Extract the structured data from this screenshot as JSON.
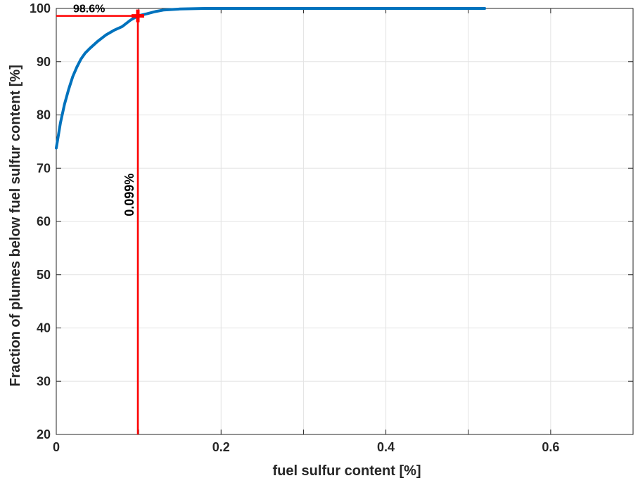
{
  "chart_data": {
    "type": "line",
    "xlabel": "fuel sulfur content [%]",
    "ylabel": "Fraction of plumes below fuel sulfur content [%]",
    "xlim": [
      0,
      0.7
    ],
    "ylim": [
      20,
      100
    ],
    "xticks": [
      "0",
      "0.2",
      "0.4",
      "0.6"
    ],
    "yticks": [
      "20",
      "30",
      "40",
      "50",
      "60",
      "70",
      "80",
      "90",
      "100"
    ],
    "grid": true,
    "series": [
      {
        "color": "#0072BD",
        "x": [
          0,
          0.005,
          0.01,
          0.015,
          0.02,
          0.025,
          0.03,
          0.035,
          0.04,
          0.05,
          0.06,
          0.07,
          0.08,
          0.09,
          0.099,
          0.11,
          0.12,
          0.13,
          0.15,
          0.18,
          0.25,
          0.35,
          0.45,
          0.52
        ],
        "y": [
          73.8,
          78.5,
          82.0,
          84.8,
          87.2,
          89.0,
          90.5,
          91.6,
          92.4,
          93.8,
          95.0,
          95.9,
          96.6,
          97.8,
          98.6,
          99.0,
          99.4,
          99.7,
          99.9,
          100,
          100,
          100,
          100,
          100
        ]
      }
    ],
    "marker": {
      "x": 0.099,
      "y": 98.6,
      "color": "#FF0000"
    },
    "annotations": [
      {
        "id": "y_value",
        "text": "98.6%"
      },
      {
        "id": "x_value",
        "text": "0.099%"
      }
    ]
  }
}
